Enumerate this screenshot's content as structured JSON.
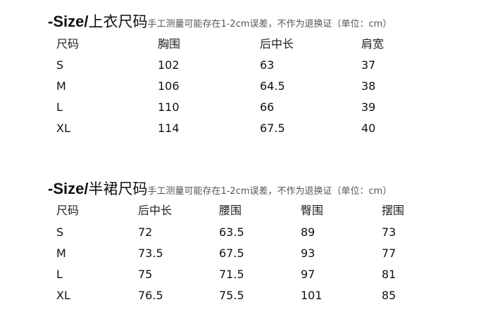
{
  "tables": [
    {
      "title_prefix": "-Size/",
      "title_name": "上衣尺码",
      "note": "手工测量可能存在1-2cm误差，不作为退换证（单位：cm）",
      "headers": [
        "尺码",
        "胸围",
        "后中长",
        "肩宽"
      ],
      "rows": [
        [
          "S",
          "102",
          "63",
          "37"
        ],
        [
          "M",
          "106",
          "64.5",
          "38"
        ],
        [
          "L",
          "110",
          "66",
          "39"
        ],
        [
          "XL",
          "114",
          "67.5",
          "40"
        ]
      ]
    },
    {
      "title_prefix": "-Size/",
      "title_name": "半裙尺码",
      "note": "手工测量可能存在1-2cm误差，不作为退换证（单位：cm）",
      "headers": [
        "尺码",
        "后中长",
        "腰围",
        "臀围",
        "摆围"
      ],
      "rows": [
        [
          "S",
          "72",
          "63.5",
          "89",
          "73"
        ],
        [
          "M",
          "73.5",
          "67.5",
          "93",
          "77"
        ],
        [
          "L",
          "75",
          "71.5",
          "97",
          "81"
        ],
        [
          "XL",
          "76.5",
          "75.5",
          "101",
          "85"
        ]
      ]
    }
  ]
}
